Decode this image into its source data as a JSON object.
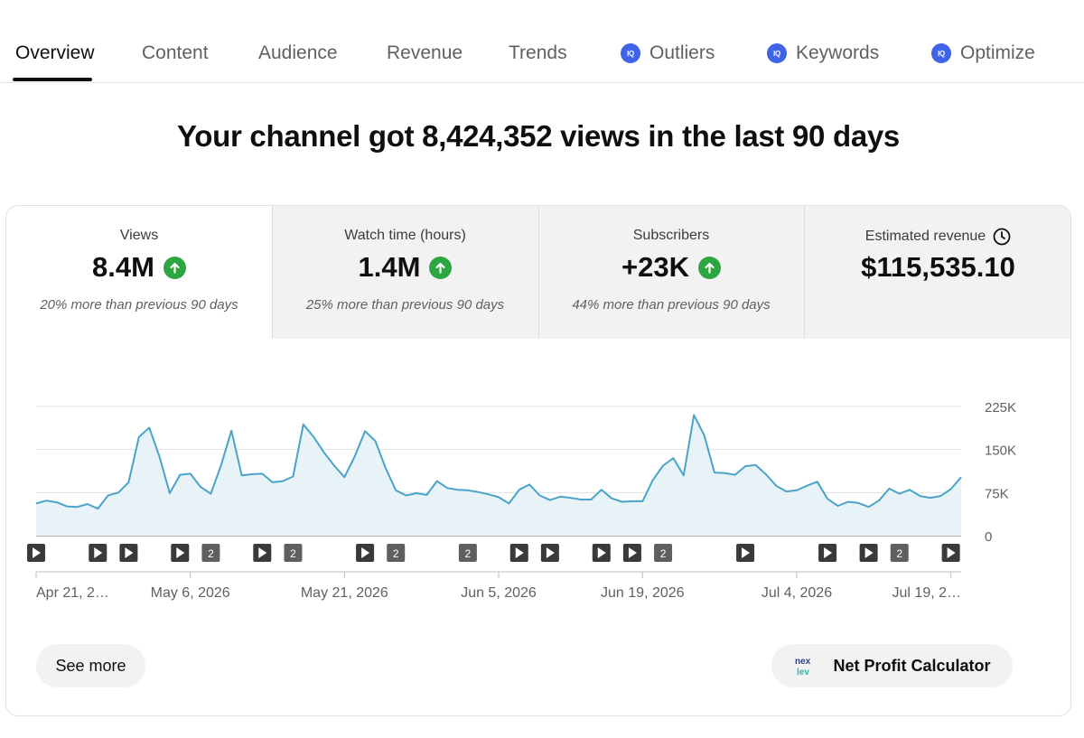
{
  "tabs": [
    {
      "label": "Overview",
      "active": true,
      "iq": false
    },
    {
      "label": "Content",
      "active": false,
      "iq": false
    },
    {
      "label": "Audience",
      "active": false,
      "iq": false
    },
    {
      "label": "Revenue",
      "active": false,
      "iq": false
    },
    {
      "label": "Trends",
      "active": false,
      "iq": false
    },
    {
      "label": "Outliers",
      "active": false,
      "iq": true
    },
    {
      "label": "Keywords",
      "active": false,
      "iq": true
    },
    {
      "label": "Optimize",
      "active": false,
      "iq": true
    }
  ],
  "iq_badge": "IQ",
  "headline": "Your channel got 8,424,352 views in the last 90 days",
  "metrics": [
    {
      "title": "Views",
      "value": "8.4M",
      "trend": "up",
      "note": "20% more than previous 90 days",
      "selected": true
    },
    {
      "title": "Watch time (hours)",
      "value": "1.4M",
      "trend": "up",
      "note": "25% more than previous 90 days",
      "selected": false
    },
    {
      "title": "Subscribers",
      "value": "+23K",
      "trend": "up",
      "note": "44% more than previous 90 days",
      "selected": false
    },
    {
      "title": "Estimated revenue",
      "value": "$115,535.10",
      "trend": "none",
      "note": "",
      "selected": false,
      "icon": "clock-icon"
    }
  ],
  "colors": {
    "line": "#4aa3c9",
    "fill": "#e8f3f8",
    "up_arrow": "#2ba640",
    "iq_icon": "#3f64e8"
  },
  "chart_data": {
    "type": "area",
    "title": "",
    "xlabel": "",
    "ylabel": "",
    "ylim": [
      0,
      225000
    ],
    "y_ticks": [
      "225K",
      "150K",
      "75K",
      "0"
    ],
    "y_tick_values": [
      225000,
      150000,
      75000,
      0
    ],
    "x_tick_labels": [
      "Apr 21, 2…",
      "May 6, 2026",
      "May 21, 2026",
      "Jun 5, 2026",
      "Jun 19, 2026",
      "Jul 4, 2026",
      "Jul 19, 2…"
    ],
    "x_tick_days": [
      0,
      15,
      30,
      45,
      59,
      74,
      89
    ],
    "series": [
      {
        "values": [
          56000,
          61000,
          58000,
          51000,
          50000,
          55000,
          47000,
          70000,
          75000,
          93000,
          172000,
          188000,
          138000,
          74000,
          106000,
          108000,
          85000,
          73000,
          123000,
          183000,
          105000,
          107000,
          108000,
          93000,
          95000,
          103000,
          194000,
          172000,
          145000,
          122000,
          102000,
          138000,
          182000,
          165000,
          118000,
          79000,
          70000,
          74000,
          71000,
          95000,
          83000,
          80000,
          79000,
          76000,
          72000,
          67000,
          56000,
          80000,
          89000,
          70000,
          62000,
          68000,
          66000,
          63000,
          63000,
          80000,
          65000,
          59000,
          60000,
          60000,
          97000,
          122000,
          135000,
          105000,
          210000,
          175000,
          110000,
          109000,
          106000,
          121000,
          123000,
          107000,
          87000,
          77000,
          79000,
          87000,
          94000,
          64000,
          52000,
          59000,
          57000,
          50000,
          61000,
          82000,
          73000,
          80000,
          69000,
          66000,
          69000,
          81000,
          102000
        ]
      }
    ],
    "upload_markers": [
      {
        "day": 0,
        "label": ""
      },
      {
        "day": 6,
        "label": ""
      },
      {
        "day": 9,
        "label": ""
      },
      {
        "day": 14,
        "label": ""
      },
      {
        "day": 17,
        "label": "2"
      },
      {
        "day": 22,
        "label": ""
      },
      {
        "day": 25,
        "label": "2"
      },
      {
        "day": 32,
        "label": ""
      },
      {
        "day": 35,
        "label": "2"
      },
      {
        "day": 42,
        "label": "2"
      },
      {
        "day": 47,
        "label": ""
      },
      {
        "day": 50,
        "label": ""
      },
      {
        "day": 55,
        "label": ""
      },
      {
        "day": 58,
        "label": ""
      },
      {
        "day": 61,
        "label": "2"
      },
      {
        "day": 69,
        "label": ""
      },
      {
        "day": 77,
        "label": ""
      },
      {
        "day": 81,
        "label": ""
      },
      {
        "day": 84,
        "label": "2"
      },
      {
        "day": 89,
        "label": ""
      }
    ],
    "grid": true
  },
  "buttons": {
    "see_more": "See more",
    "net_profit": "Net Profit Calculator",
    "nexlev_logo_text": "nexlev"
  }
}
